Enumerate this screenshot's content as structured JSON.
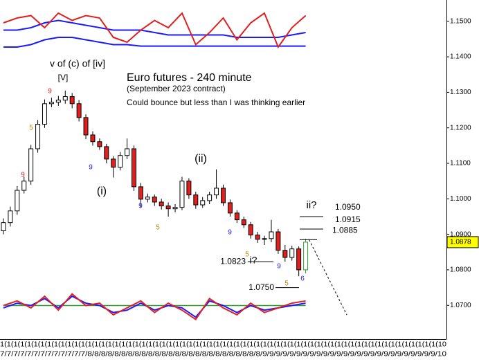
{
  "chart_data": {
    "type": "candlestick",
    "title": "Euro futures - 240 minute",
    "subtitle": "(September 2023 contract)",
    "note": "Could bounce but less than I was thinking earlier",
    "open": [
      1.091,
      1.0933,
      1.0966,
      1.1024,
      1.105,
      1.1141,
      1.121,
      1.1268,
      1.1272,
      1.1278,
      1.1288,
      1.1268,
      1.1229,
      1.118,
      1.1161,
      1.1147,
      1.1112,
      1.1089,
      1.1122,
      1.1141,
      1.1034,
      1.0999,
      1.1005,
      1.0991,
      1.098,
      1.0972,
      1.0976,
      1.105,
      1.1011,
      1.0983,
      1.0995,
      1.1011,
      1.103,
      1.0989,
      1.096,
      1.0941,
      1.0927,
      1.0898,
      1.0886,
      1.0888,
      1.0907,
      1.0855,
      1.0835,
      1.0859,
      1.08
    ],
    "high": [
      1.0945,
      1.0978,
      1.1036,
      1.1062,
      1.1152,
      1.1222,
      1.128,
      1.1285,
      1.129,
      1.1305,
      1.1298,
      1.1278,
      1.1238,
      1.119,
      1.117,
      1.1155,
      1.112,
      1.1132,
      1.117,
      1.115,
      1.1045,
      1.1015,
      1.1012,
      1.1,
      1.099,
      1.0985,
      1.1062,
      1.1058,
      1.102,
      1.1005,
      1.102,
      1.1083,
      1.104,
      1.0998,
      1.0968,
      1.095,
      1.0935,
      1.0907,
      1.0896,
      1.0941,
      1.0915,
      1.087,
      1.0868,
      1.0866,
      1.0888
    ],
    "low": [
      1.09,
      1.0922,
      1.0955,
      1.1015,
      1.104,
      1.113,
      1.12,
      1.1258,
      1.1262,
      1.1268,
      1.1255,
      1.1218,
      1.1168,
      1.115,
      1.1138,
      1.11,
      1.106,
      1.108,
      1.1112,
      1.1022,
      1.0975,
      1.099,
      1.098,
      1.097,
      1.095,
      1.0962,
      1.0968,
      1.1,
      1.0972,
      1.0975,
      1.0985,
      1.1,
      1.098,
      1.095,
      1.0932,
      1.0918,
      1.0888,
      1.0876,
      1.087,
      1.0878,
      1.0845,
      1.0823,
      1.0826,
      1.0782,
      1.079
    ],
    "close": [
      1.0933,
      1.0966,
      1.1024,
      1.105,
      1.1141,
      1.121,
      1.1268,
      1.1272,
      1.1278,
      1.1288,
      1.1268,
      1.1229,
      1.118,
      1.1161,
      1.1147,
      1.1112,
      1.1089,
      1.1122,
      1.1141,
      1.1034,
      1.0999,
      1.1005,
      1.0991,
      1.098,
      1.0972,
      1.0976,
      1.105,
      1.1011,
      1.0983,
      1.0995,
      1.1011,
      1.103,
      1.0989,
      1.096,
      1.0941,
      1.0927,
      1.0898,
      1.0886,
      1.0888,
      1.0907,
      1.0855,
      1.0835,
      1.0859,
      1.08,
      1.0878
    ],
    "up_color": "#ffffff",
    "down_color": "#e0201f",
    "last_color": "#2e9e2e",
    "price_tag_color": "#ffff00",
    "xlim": [
      -0.5,
      64.5
    ],
    "ylim": [
      1.0605,
      1.156
    ],
    "yticks": [
      {
        "value": 1.15,
        "label": "1.1500"
      },
      {
        "value": 1.14,
        "label": "1.1400"
      },
      {
        "value": 1.13,
        "label": "1.1300"
      },
      {
        "value": 1.12,
        "label": "1.1200"
      },
      {
        "value": 1.11,
        "label": "1.1100"
      },
      {
        "value": 1.1,
        "label": "1.1000"
      },
      {
        "value": 1.09,
        "label": "1.0900"
      },
      {
        "value": 1.08,
        "label": "1.0800"
      },
      {
        "value": 1.07,
        "label": "1.0700"
      }
    ],
    "x_axis_labels": [
      "1(1(1(1(1(1(1(1(1(1(1(1(1(1(1(1(1(1(1(1(1(1(1(1(1(1(1(1(1(1(1(1(1(1(1(1(1(1(1(1(1(1(1(1(1(1(1(1(1(1(1(1(1(1(1(1(1(1(1(1(1(1(1(1(1(10",
      "7/7/7/7/7/7/7/7/7/7/7/7/7/8/8/8/8/8/8/8/8/8/8/8/8/8/8/8/8/8/8/8/8/8/8/8/8/8/8/9/9/9/9/9/9/9/9/9/9/9/9/9/9/9/9/9/9/9/9/9/9/9/9/9/9/10"
    ],
    "levels": [
      {
        "value": 1.095,
        "label": "1.0950"
      },
      {
        "value": 1.0915,
        "label": "1.0915"
      },
      {
        "value": 1.0885,
        "label": "1.0885"
      },
      {
        "value": 1.0823,
        "label": "1.0823"
      },
      {
        "value": 1.075,
        "label": "1.0750"
      }
    ],
    "projection": {
      "x": [
        44.5,
        50
      ],
      "y": [
        1.0885,
        1.0673
      ]
    },
    "annotations": [
      {
        "text": "v of (c) of [iv]",
        "color": "#000000"
      },
      {
        "text": "[V]",
        "color": "#000000"
      },
      {
        "text": "9",
        "color": "#e0201f"
      },
      {
        "text": "5",
        "color": "#b8860b"
      },
      {
        "text": "9",
        "color": "#e0201f"
      },
      {
        "text": "9",
        "color": "#1a1aff"
      },
      {
        "text": "(i)",
        "color": "#000000"
      },
      {
        "text": "9",
        "color": "#1a1aff"
      },
      {
        "text": "5",
        "color": "#b8860b"
      },
      {
        "text": "(ii)",
        "color": "#000000"
      },
      {
        "text": "9",
        "color": "#1a1aff"
      },
      {
        "text": "5",
        "color": "#b8860b"
      },
      {
        "text": "9",
        "color": "#1a1aff"
      },
      {
        "text": "6",
        "color": "#1a1aff"
      },
      {
        "text": "5",
        "color": "#b8860b"
      },
      {
        "text": "ii?",
        "color": "#000000"
      },
      {
        "text": "i?",
        "color": "#000000"
      }
    ],
    "upper_panel": {
      "ylim": [
        0,
        100
      ],
      "x": [
        0,
        2,
        4,
        6,
        8,
        10,
        12,
        14,
        16,
        18,
        20,
        22,
        24,
        26,
        28,
        30,
        32,
        34,
        36,
        38,
        40,
        42,
        44
      ],
      "series": [
        {
          "color": "#1a1aff",
          "values": [
            55,
            55,
            60,
            70,
            75,
            70,
            65,
            60,
            55,
            55,
            55,
            50,
            45,
            45,
            45,
            45,
            45,
            40,
            40,
            40,
            40,
            45,
            50
          ]
        },
        {
          "color": "#1a1aff",
          "values": [
            20,
            20,
            25,
            35,
            40,
            40,
            35,
            30,
            25,
            25,
            22,
            22,
            22,
            22,
            22,
            22,
            22,
            22,
            22,
            22,
            22,
            22,
            22
          ]
        },
        {
          "color": "#e0201f",
          "values": [
            70,
            80,
            85,
            60,
            90,
            75,
            85,
            80,
            40,
            30,
            55,
            75,
            60,
            90,
            25,
            50,
            80,
            35,
            70,
            90,
            20,
            60,
            85
          ]
        }
      ]
    },
    "lower_panel": {
      "ylim": [
        0,
        100
      ],
      "level": 50,
      "level_color": "#2e9e2e",
      "x": [
        0,
        2,
        4,
        6,
        8,
        10,
        12,
        14,
        16,
        18,
        20,
        22,
        24,
        26,
        28,
        30,
        32,
        34,
        36,
        38,
        40,
        42,
        44
      ],
      "series": [
        {
          "color": "#1a1aff",
          "values": [
            45,
            55,
            50,
            65,
            45,
            70,
            55,
            50,
            35,
            40,
            55,
            40,
            50,
            45,
            25,
            60,
            50,
            35,
            50,
            40,
            45,
            50,
            55
          ]
        },
        {
          "color": "#e0201f",
          "values": [
            50,
            60,
            45,
            70,
            40,
            75,
            50,
            55,
            30,
            45,
            60,
            35,
            55,
            40,
            20,
            65,
            45,
            30,
            55,
            35,
            45,
            55,
            60
          ]
        }
      ]
    }
  }
}
